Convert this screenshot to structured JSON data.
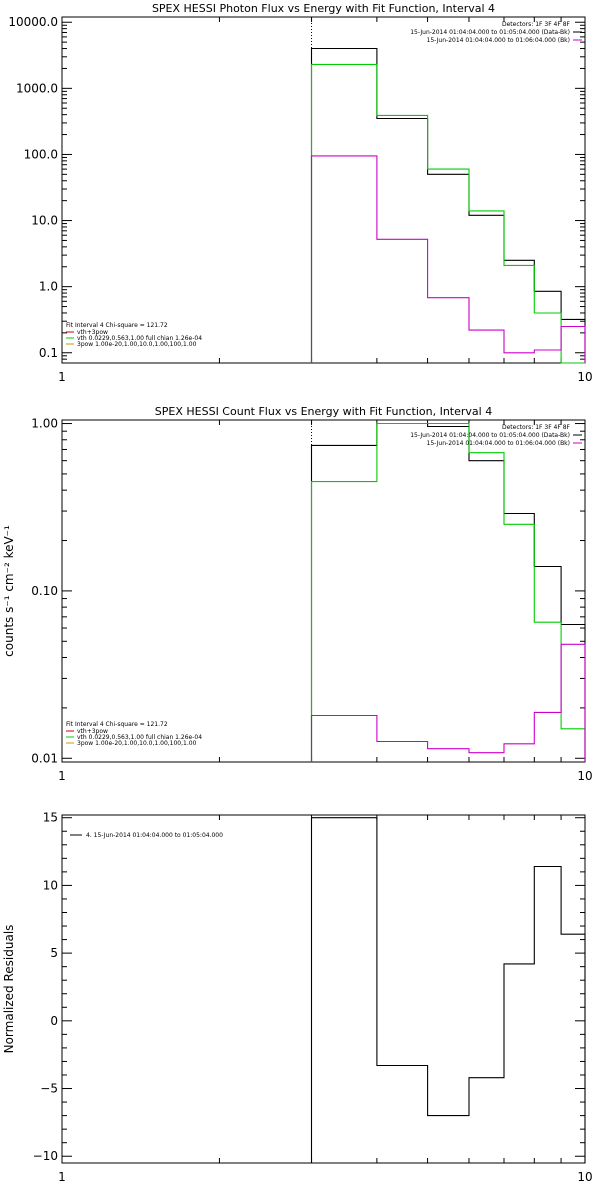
{
  "chart_data": [
    {
      "type": "line",
      "title": "SPEX HESSI Photon Flux vs Energy with Fit Function, Interval 4",
      "xlabel": "",
      "ylabel": "",
      "x_scale": "log",
      "y_scale": "log",
      "xlim": [
        1,
        10
      ],
      "ylim": [
        0.07,
        12000
      ],
      "x_ticks": [
        {
          "v": 1,
          "label": "1"
        },
        {
          "v": 10,
          "label": "10"
        }
      ],
      "y_ticks": [
        {
          "v": 10000,
          "label": "10000.0"
        },
        {
          "v": 1000,
          "label": "1000.0"
        },
        {
          "v": 100,
          "label": "100.0"
        },
        {
          "v": 10,
          "label": "10.0"
        },
        {
          "v": 1,
          "label": "1.0"
        },
        {
          "v": 0.1,
          "label": "0.1"
        }
      ],
      "bin_edges": [
        3,
        4,
        5,
        6,
        7,
        8,
        9,
        10
      ],
      "fit_start": 3,
      "series": [
        {
          "key": "data",
          "color": "#000000",
          "values": [
            4000,
            350,
            50,
            12,
            2.5,
            0.85,
            0.32
          ]
        },
        {
          "key": "vth",
          "color": "#00cc00",
          "values": [
            2300,
            390,
            60,
            14,
            2.1,
            0.4,
            0.07
          ]
        },
        {
          "key": "bk",
          "color": "#cc00cc",
          "values": [
            95,
            5.2,
            0.68,
            0.22,
            0.1,
            0.11,
            0.25
          ]
        }
      ],
      "legend_tr": {
        "title": "Detectors: 1F 3F 4F 8F",
        "entries": [
          {
            "text": "15-Jun-2014 01:04:04.000 to 01:05:04.000 (Data-Bk)",
            "color": "#000000"
          },
          {
            "text": "15-Jun-2014 01:04:04.000 to 01:06:04.000 (Bk)",
            "color": "#cc00cc"
          }
        ]
      },
      "legend_bl": {
        "title": "Fit Interval 4   Chi-square = 121.72",
        "entries": [
          {
            "text": "vth+3pow",
            "color": "#cc0000"
          },
          {
            "text": "vth 0.0229,0.563,1.00  full chian 1.26e-04",
            "color": "#00cc00"
          },
          {
            "text": "3pow 1.00e-20,1.00,10.0,1.00,100,1.00",
            "color": "#cc9900"
          }
        ]
      }
    },
    {
      "type": "line",
      "title": "SPEX HESSI Count Flux vs Energy with Fit Function, Interval 4",
      "xlabel": "",
      "ylabel": "counts s⁻¹ cm⁻² keV⁻¹",
      "x_scale": "log",
      "y_scale": "log",
      "xlim": [
        1,
        10
      ],
      "ylim": [
        0.0095,
        1.05
      ],
      "x_ticks": [
        {
          "v": 1,
          "label": "1"
        },
        {
          "v": 10,
          "label": "10"
        }
      ],
      "y_ticks": [
        {
          "v": 1,
          "label": "1.00"
        },
        {
          "v": 0.1,
          "label": "0.10"
        },
        {
          "v": 0.01,
          "label": "0.01"
        }
      ],
      "bin_edges": [
        3,
        4,
        5,
        6,
        7,
        8,
        9,
        10
      ],
      "fit_start": 3,
      "series": [
        {
          "key": "data",
          "color": "#000000",
          "values": [
            0.74,
            1.0,
            0.96,
            0.6,
            0.29,
            0.14,
            0.063
          ]
        },
        {
          "key": "vth",
          "color": "#00cc00",
          "values": [
            0.45,
            1.0,
            1.0,
            0.67,
            0.25,
            0.065,
            0.015
          ]
        },
        {
          "key": "bk",
          "color": "#cc00cc",
          "values": [
            0.018,
            0.0126,
            0.0114,
            0.0108,
            0.0122,
            0.0188,
            0.048
          ]
        }
      ],
      "legend_tr": {
        "title": "Detectors: 1F 3F 4F 8F",
        "entries": [
          {
            "text": "15-Jun-2014 01:04:04.000 to 01:05:04.000 (Data-Bk)",
            "color": "#000000"
          },
          {
            "text": "15-Jun-2014 01:04:04.000 to 01:06:04.000 (Bk)",
            "color": "#cc00cc"
          }
        ]
      },
      "legend_bl": {
        "title": "Fit Interval 4   Chi-square = 121.72",
        "entries": [
          {
            "text": "vth+3pow",
            "color": "#cc0000"
          },
          {
            "text": "vth 0.0229,0.563,1.00  full chian 1.26e-04",
            "color": "#00cc00"
          },
          {
            "text": "3pow 1.00e-20,1.00,10.0,1.00,100,1.00",
            "color": "#cc9900"
          }
        ]
      }
    },
    {
      "type": "line",
      "title": "",
      "xlabel": "",
      "ylabel": "Normalized Residuals",
      "x_scale": "log",
      "y_scale": "linear",
      "xlim": [
        1,
        10
      ],
      "ylim": [
        -10.5,
        15.2
      ],
      "x_ticks": [
        {
          "v": 1,
          "label": "1"
        },
        {
          "v": 10,
          "label": "10"
        }
      ],
      "y_ticks": [
        {
          "v": 15,
          "label": "15"
        },
        {
          "v": 10,
          "label": "10"
        },
        {
          "v": 5,
          "label": "5"
        },
        {
          "v": 0,
          "label": "0"
        },
        {
          "v": -5,
          "label": "−5"
        },
        {
          "v": -10,
          "label": "−10"
        }
      ],
      "bin_edges": [
        3,
        4,
        5,
        6,
        7,
        8,
        9,
        10
      ],
      "series": [
        {
          "key": "resid",
          "color": "#000000",
          "values": [
            15,
            -3.3,
            -7,
            -4.2,
            4.2,
            11.4,
            6.4
          ]
        }
      ],
      "legend_tl": {
        "entries": [
          {
            "text": "4. 15-Jun-2014 01:04:04.000 to 01:05:04.000",
            "color": "#000000"
          }
        ]
      }
    }
  ]
}
